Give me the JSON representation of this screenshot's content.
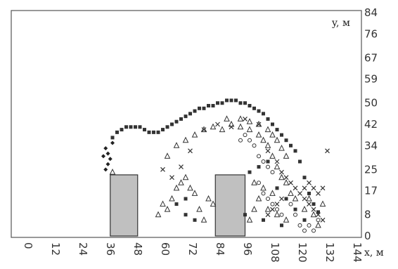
{
  "chart_data": {
    "type": "scatter",
    "title": "",
    "xlabel": "x, м",
    "ylabel": "y, м",
    "xlim": [
      0,
      144
    ],
    "ylim": [
      0,
      84
    ],
    "x_ticks": [
      "0",
      "12",
      "24",
      "36",
      "48",
      "60",
      "72",
      "84",
      "96",
      "108",
      "120",
      "132",
      "144"
    ],
    "y_ticks": [
      "0",
      "8",
      "17",
      "25",
      "34",
      "42",
      "50",
      "59",
      "67",
      "76",
      "84"
    ],
    "obstacles": [
      {
        "x0": 39,
        "x1": 51,
        "y0": 0,
        "y1": 23
      },
      {
        "x0": 85,
        "x1": 98,
        "y0": 0,
        "y1": 23
      }
    ],
    "series": [
      {
        "marker": "square",
        "color": "#333333",
        "points": [
          [
            40,
            37
          ],
          [
            42,
            39
          ],
          [
            44,
            40
          ],
          [
            46,
            41
          ],
          [
            48,
            41
          ],
          [
            50,
            41
          ],
          [
            52,
            41
          ],
          [
            54,
            40
          ],
          [
            56,
            39
          ],
          [
            58,
            39
          ],
          [
            60,
            39
          ],
          [
            62,
            40
          ],
          [
            64,
            41
          ],
          [
            66,
            42
          ],
          [
            68,
            43
          ],
          [
            70,
            44
          ],
          [
            72,
            45
          ],
          [
            74,
            46
          ],
          [
            76,
            47
          ],
          [
            78,
            48
          ],
          [
            80,
            48
          ],
          [
            82,
            49
          ],
          [
            84,
            49
          ],
          [
            86,
            50
          ],
          [
            88,
            50
          ],
          [
            90,
            51
          ],
          [
            92,
            51
          ],
          [
            94,
            51
          ],
          [
            96,
            50
          ],
          [
            98,
            50
          ],
          [
            100,
            49
          ],
          [
            102,
            48
          ],
          [
            104,
            47
          ],
          [
            106,
            46
          ],
          [
            108,
            44
          ],
          [
            110,
            42
          ],
          [
            112,
            40
          ],
          [
            114,
            38
          ],
          [
            116,
            36
          ],
          [
            118,
            34
          ],
          [
            120,
            32
          ],
          [
            122,
            28
          ],
          [
            124,
            22
          ],
          [
            126,
            16
          ],
          [
            128,
            12
          ],
          [
            130,
            9
          ],
          [
            100,
            24
          ],
          [
            104,
            26
          ],
          [
            108,
            28
          ],
          [
            112,
            18
          ],
          [
            116,
            14
          ],
          [
            120,
            10
          ],
          [
            98,
            8
          ],
          [
            106,
            6
          ],
          [
            114,
            4
          ],
          [
            124,
            6
          ],
          [
            68,
            12
          ],
          [
            72,
            8
          ],
          [
            76,
            6
          ],
          [
            72,
            14
          ]
        ]
      },
      {
        "marker": "diamond",
        "color": "#222222",
        "points": [
          [
            37,
            33
          ],
          [
            38,
            31
          ],
          [
            39,
            29
          ],
          [
            38,
            27
          ],
          [
            37,
            25
          ],
          [
            40,
            35
          ],
          [
            36,
            30
          ]
        ]
      },
      {
        "marker": "triangle",
        "color": "#333333",
        "points": [
          [
            40,
            24
          ],
          [
            64,
            10
          ],
          [
            66,
            14
          ],
          [
            68,
            18
          ],
          [
            70,
            20
          ],
          [
            72,
            22
          ],
          [
            74,
            18
          ],
          [
            76,
            16
          ],
          [
            60,
            8
          ],
          [
            62,
            12
          ],
          [
            78,
            10
          ],
          [
            80,
            6
          ],
          [
            82,
            14
          ],
          [
            84,
            12
          ],
          [
            64,
            30
          ],
          [
            68,
            34
          ],
          [
            72,
            36
          ],
          [
            76,
            38
          ],
          [
            80,
            40
          ],
          [
            84,
            41
          ],
          [
            88,
            40
          ],
          [
            92,
            42
          ],
          [
            96,
            41
          ],
          [
            100,
            40
          ],
          [
            104,
            38
          ],
          [
            106,
            36
          ],
          [
            108,
            34
          ],
          [
            110,
            30
          ],
          [
            112,
            26
          ],
          [
            114,
            22
          ],
          [
            116,
            20
          ],
          [
            118,
            16
          ],
          [
            120,
            14
          ],
          [
            104,
            14
          ],
          [
            108,
            10
          ],
          [
            112,
            8
          ],
          [
            116,
            6
          ],
          [
            102,
            20
          ],
          [
            106,
            18
          ],
          [
            110,
            16
          ],
          [
            96,
            44
          ],
          [
            90,
            44
          ],
          [
            100,
            43
          ],
          [
            104,
            42
          ],
          [
            108,
            40
          ],
          [
            110,
            38
          ],
          [
            112,
            36
          ],
          [
            114,
            33
          ],
          [
            116,
            30
          ],
          [
            102,
            10
          ],
          [
            100,
            6
          ],
          [
            124,
            10
          ],
          [
            128,
            8
          ],
          [
            132,
            12
          ],
          [
            130,
            4
          ],
          [
            126,
            14
          ]
        ]
      },
      {
        "marker": "cross",
        "color": "#333333",
        "points": [
          [
            62,
            25
          ],
          [
            66,
            22
          ],
          [
            70,
            26
          ],
          [
            74,
            32
          ],
          [
            80,
            40
          ],
          [
            86,
            42
          ],
          [
            92,
            41
          ],
          [
            98,
            44
          ],
          [
            104,
            42
          ],
          [
            108,
            32
          ],
          [
            112,
            28
          ],
          [
            114,
            24
          ],
          [
            116,
            22
          ],
          [
            118,
            20
          ],
          [
            120,
            18
          ],
          [
            122,
            16
          ],
          [
            124,
            14
          ],
          [
            126,
            12
          ],
          [
            128,
            10
          ],
          [
            130,
            8
          ],
          [
            132,
            6
          ],
          [
            130,
            16
          ],
          [
            132,
            18
          ],
          [
            128,
            18
          ],
          [
            126,
            20
          ],
          [
            124,
            18
          ],
          [
            110,
            10
          ],
          [
            112,
            12
          ],
          [
            114,
            14
          ],
          [
            108,
            8
          ],
          [
            134,
            32
          ]
        ]
      },
      {
        "marker": "circle",
        "color": "#333333",
        "points": [
          [
            96,
            36
          ],
          [
            98,
            38
          ],
          [
            100,
            36
          ],
          [
            102,
            34
          ],
          [
            104,
            30
          ],
          [
            106,
            28
          ],
          [
            108,
            26
          ],
          [
            110,
            24
          ],
          [
            104,
            20
          ],
          [
            106,
            16
          ],
          [
            108,
            14
          ],
          [
            110,
            12
          ],
          [
            112,
            10
          ],
          [
            114,
            8
          ],
          [
            118,
            12
          ],
          [
            120,
            8
          ],
          [
            122,
            4
          ],
          [
            124,
            2
          ],
          [
            126,
            4
          ],
          [
            128,
            2
          ],
          [
            130,
            6
          ]
        ]
      }
    ]
  }
}
